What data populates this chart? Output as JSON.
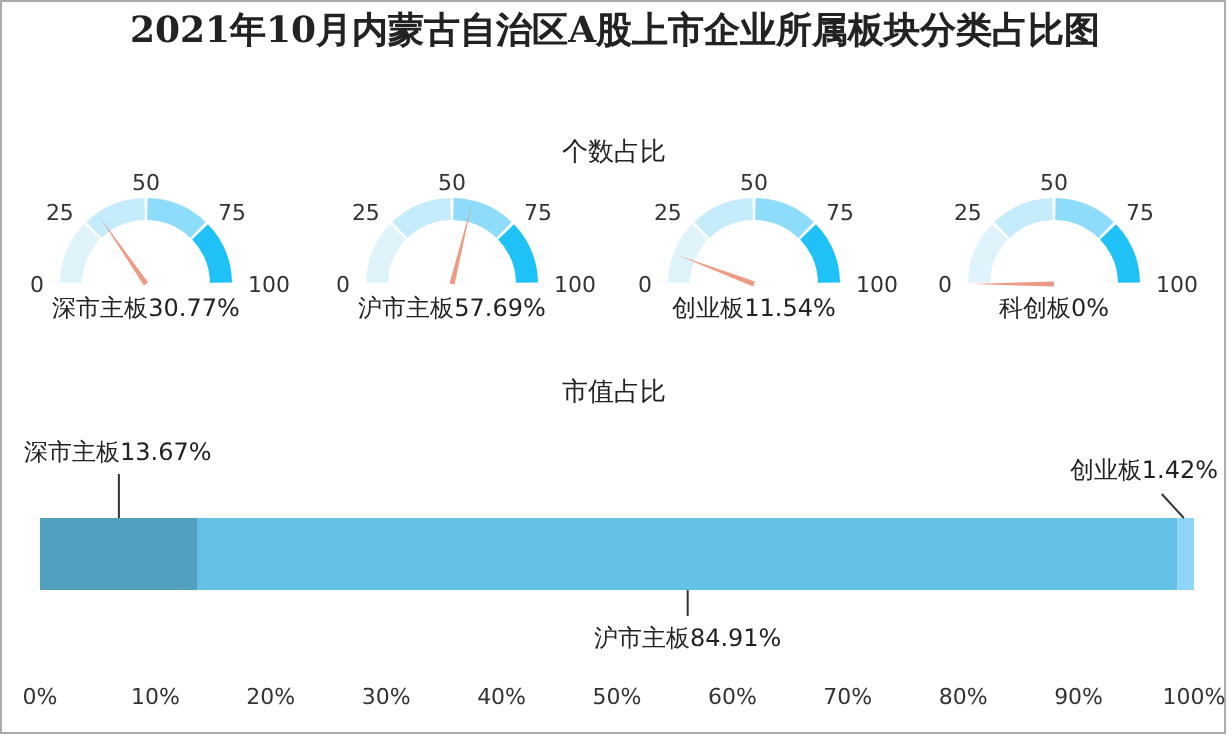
{
  "chart_data": [
    {
      "type": "other",
      "title": "2021年10月内蒙古自治区A股上市企业所属板块分类占比图",
      "subtitle": "个数占比",
      "categories": [
        "深市主板"
      ],
      "values": [
        30.77
      ],
      "value_labels": [
        "30.77%"
      ],
      "color": "#ee9a84",
      "annotations": [
        "0",
        "25",
        "50",
        "75",
        "100"
      ]
    },
    {
      "type": "other",
      "categories": [
        "沪市主板"
      ],
      "values": [
        57.69
      ],
      "value_labels": [
        "57.69%"
      ],
      "color": "#ee9a84",
      "annotations": [
        "0",
        "25",
        "50",
        "75",
        "100"
      ]
    },
    {
      "type": "other",
      "categories": [
        "创业板"
      ],
      "values": [
        11.54
      ],
      "value_labels": [
        "11.54%"
      ],
      "color": "#ee9a84",
      "annotations": [
        "0",
        "25",
        "50",
        "75",
        "100"
      ]
    },
    {
      "type": "other",
      "categories": [
        "科创板"
      ],
      "values": [
        0
      ],
      "value_labels": [
        "0%"
      ],
      "color": "#ee9a84",
      "annotations": [
        "0",
        "25",
        "50",
        "75",
        "100"
      ]
    },
    {
      "type": "bar",
      "title": "市值占比",
      "orientation": "horizontal",
      "stacked": true,
      "categories": [
        null
      ],
      "xlim": [
        0,
        100
      ],
      "xticks": [
        {
          "value": 0,
          "label": "0%"
        },
        {
          "value": 10,
          "label": "10%"
        },
        {
          "value": 20,
          "label": "20%"
        },
        {
          "value": 30,
          "label": "30%"
        },
        {
          "value": 40,
          "label": "40%"
        },
        {
          "value": 50,
          "label": "50%"
        },
        {
          "value": 60,
          "label": "60%"
        },
        {
          "value": 70,
          "label": "70%"
        },
        {
          "value": 80,
          "label": "80%"
        },
        {
          "value": 90,
          "label": "90%"
        },
        {
          "value": 100,
          "label": "100%"
        }
      ],
      "series": [
        {
          "name": "深市主板",
          "color": "#52a0c0",
          "values": [
            13.67
          ],
          "value_labels": [
            "13.67%"
          ]
        },
        {
          "name": "沪市主板",
          "color": "#64c0e6",
          "values": [
            84.91
          ],
          "value_labels": [
            "84.91%"
          ]
        },
        {
          "name": "创业板",
          "color": "#8fd5f5",
          "values": [
            1.42
          ],
          "value_labels": [
            "1.42%"
          ]
        }
      ]
    }
  ]
}
